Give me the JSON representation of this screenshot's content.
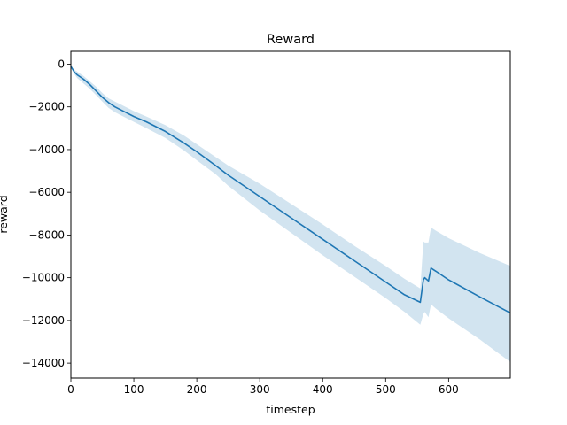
{
  "chart_data": {
    "type": "line",
    "title": "Reward",
    "xlabel": "timestep",
    "ylabel": "reward",
    "xlim": [
      0,
      698
    ],
    "ylim": [
      -14700,
      600
    ],
    "xticks": [
      0,
      100,
      200,
      300,
      400,
      500,
      600
    ],
    "yticks": [
      0,
      -2000,
      -4000,
      -6000,
      -8000,
      -10000,
      -12000,
      -14000
    ],
    "grid": false,
    "legend": "none",
    "colors": {
      "line": "#1f77b4",
      "band": "#1f77b4",
      "band_opacity": 0.2
    },
    "series": [
      {
        "x": [
          0,
          5,
          10,
          20,
          30,
          40,
          50,
          60,
          70,
          80,
          100,
          120,
          150,
          180,
          200,
          230,
          250,
          300,
          350,
          400,
          450,
          500,
          530,
          555,
          560,
          562,
          568,
          572,
          580,
          600,
          650,
          698
        ],
        "y": [
          -100,
          -350,
          -500,
          -700,
          -950,
          -1250,
          -1550,
          -1800,
          -2000,
          -2150,
          -2450,
          -2700,
          -3150,
          -3700,
          -4100,
          -4750,
          -5200,
          -6200,
          -7200,
          -8200,
          -9200,
          -10200,
          -10800,
          -11150,
          -10100,
          -10000,
          -10150,
          -9550,
          -9700,
          -10100,
          -10900,
          -11650
        ],
        "lower": [
          -100,
          -450,
          -650,
          -900,
          -1150,
          -1450,
          -1750,
          -2050,
          -2250,
          -2400,
          -2700,
          -3000,
          -3450,
          -4050,
          -4500,
          -5150,
          -5700,
          -6850,
          -7900,
          -8950,
          -9950,
          -10950,
          -11600,
          -12200,
          -11700,
          -11600,
          -11850,
          -11250,
          -11450,
          -11900,
          -12900,
          -13950
        ],
        "upper": [
          -100,
          -250,
          -350,
          -550,
          -800,
          -1050,
          -1350,
          -1600,
          -1750,
          -1900,
          -2200,
          -2450,
          -2850,
          -3350,
          -3750,
          -4350,
          -4750,
          -5600,
          -6550,
          -7500,
          -8500,
          -9450,
          -10050,
          -10500,
          -8300,
          -8350,
          -8350,
          -7650,
          -7800,
          -8150,
          -8850,
          -9450
        ]
      }
    ]
  }
}
